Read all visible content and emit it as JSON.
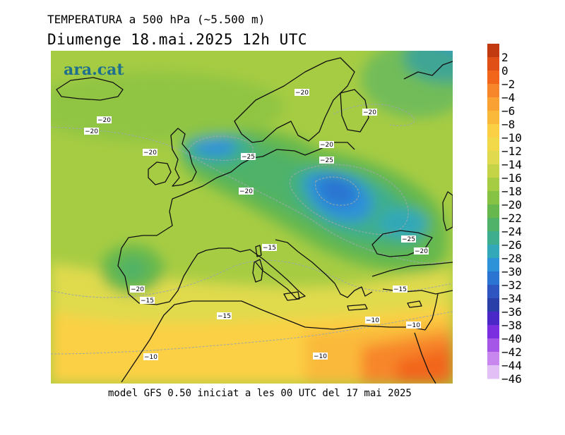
{
  "header": {
    "line1": "TEMPERATURA a 500 hPa (~5.500 m)",
    "line2": "Diumenge  18.mai.2025 12h UTC"
  },
  "footer": {
    "text": "model GFS 0.50 iniciat a les 00 UTC del 17 mai 2025"
  },
  "brand": {
    "logo_text": "ara.cat",
    "color": "#1f6f8f"
  },
  "legend": {
    "values": [
      "2",
      "0",
      "−2",
      "−4",
      "−6",
      "−8",
      "−10",
      "−12",
      "−14",
      "−16",
      "−18",
      "−20",
      "−22",
      "−24",
      "−26",
      "−28",
      "−30",
      "−32",
      "−34",
      "−36",
      "−38",
      "−40",
      "−42",
      "−44",
      "−46"
    ],
    "colors": [
      "#c23a10",
      "#e04f16",
      "#f2661c",
      "#f7862a",
      "#f9a233",
      "#fab93a",
      "#fbd044",
      "#f2d94a",
      "#e0da4e",
      "#c4d446",
      "#a6cc43",
      "#86c244",
      "#66b84e",
      "#4fb268",
      "#3eae8f",
      "#32a8b8",
      "#2d92d8",
      "#2c74d2",
      "#2e55c0",
      "#2a3fa8",
      "#4a28c8",
      "#7a2ee0",
      "#a656e6",
      "#c887ee",
      "#e2c0f6"
    ]
  },
  "contour_labels": [
    {
      "text": "−20"
    },
    {
      "text": "−20"
    },
    {
      "text": "−20"
    },
    {
      "text": "−20"
    },
    {
      "text": "−20"
    },
    {
      "text": "−20"
    },
    {
      "text": "−25"
    },
    {
      "text": "−20"
    },
    {
      "text": "−25"
    },
    {
      "text": "−15"
    },
    {
      "text": "−25"
    },
    {
      "text": "−20"
    },
    {
      "text": "−20"
    },
    {
      "text": "−15"
    },
    {
      "text": "−15"
    },
    {
      "text": "−15"
    },
    {
      "text": "−10"
    },
    {
      "text": "−10"
    },
    {
      "text": "−10"
    },
    {
      "text": "−10"
    }
  ]
}
